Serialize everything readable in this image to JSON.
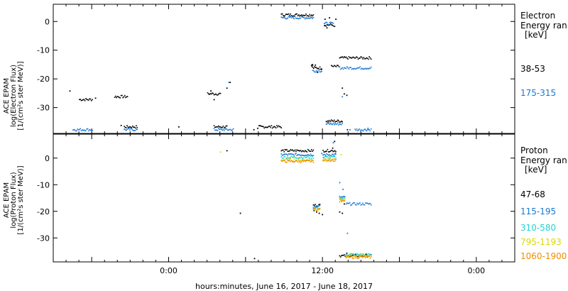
{
  "x_axis_label": "hours:minutes, June 16, 2017 - June 18, 2017",
  "chart_data": [
    {
      "type": "scatter",
      "panel": "electron",
      "ylabel": [
        "ACE EPAM",
        "log(Electron Flux)",
        "[1/(cm²s ster MeV)]"
      ],
      "legend_title": [
        "Electron",
        "Energy ran",
        "[keV]"
      ],
      "ylim": [
        -39,
        6
      ],
      "yticks": [
        0,
        -10,
        -20,
        -30
      ],
      "xticks": [
        "0:00",
        "12:00",
        "0:00"
      ],
      "grid": false,
      "series": [
        {
          "name": "38-53",
          "color": "#000000",
          "segments": [
            [
              -26,
              -24,
              -27.0
            ],
            [
              -20.5,
              -18.5,
              -26.0
            ],
            [
              -19,
              -17,
              -36.5
            ],
            [
              -6,
              -4,
              -25.0
            ],
            [
              -5,
              -3,
              -36.5
            ],
            [
              2,
              5.5,
              -36.5
            ],
            [
              5.5,
              10.5,
              2.5
            ],
            [
              10.2,
              10.4,
              -15.0
            ],
            [
              10.4,
              11.8,
              -16.0
            ],
            [
              12.2,
              13.6,
              -1.0
            ],
            [
              13.3,
              14.5,
              -15.5
            ],
            [
              14.6,
              19.5,
              -12.5
            ],
            [
              12.5,
              15.0,
              -34.5
            ]
          ],
          "points": [
            [
              -27.5,
              -24.0
            ],
            [
              -23.5,
              -26.5
            ],
            [
              -19.5,
              -36.0
            ],
            [
              -10.5,
              -36.5
            ],
            [
              -5.5,
              -24.0
            ],
            [
              -5.0,
              -27.0
            ],
            [
              -3.0,
              -23.0
            ],
            [
              -2.5,
              -21.0
            ],
            [
              1.2,
              -37.5
            ],
            [
              1.8,
              -37.0
            ],
            [
              10.8,
              -15.0
            ],
            [
              11.1,
              -17.5
            ],
            [
              11.7,
              -16.5
            ],
            [
              12.3,
              1.0
            ],
            [
              13.0,
              1.5
            ],
            [
              14.0,
              1.0
            ],
            [
              15.0,
              -23.0
            ],
            [
              15.3,
              -25.0
            ],
            [
              15.7,
              -25.5
            ],
            [
              15.8,
              -37.5
            ],
            [
              13.8,
              -1.5
            ],
            [
              12.6,
              -2.0
            ]
          ]
        },
        {
          "name": "175-315",
          "color": "#1a78d2",
          "segments": [
            [
              -27,
              -24,
              -37.5
            ],
            [
              -19,
              -17,
              -37.5
            ],
            [
              -5,
              -2,
              -37.5
            ],
            [
              5.5,
              10.5,
              1.5
            ],
            [
              10.4,
              11.8,
              -17.0
            ],
            [
              12.2,
              13.6,
              -0.5
            ],
            [
              14.6,
              19.5,
              -16.0
            ],
            [
              12.5,
              15.0,
              -35.5
            ],
            [
              17.0,
              19.5,
              -37.5
            ]
          ],
          "points": [
            [
              -2.7,
              -21.0
            ],
            [
              15.0,
              -26.0
            ],
            [
              16.2,
              -37.5
            ],
            [
              19.0,
              -37.0
            ]
          ]
        }
      ]
    },
    {
      "type": "scatter",
      "panel": "proton",
      "ylabel": [
        "ACE EPAM",
        "log(Proton Flux)",
        "[1/(cm²s ster MeV)]"
      ],
      "legend_title": [
        "Proton",
        "Energy ran",
        "[keV]"
      ],
      "ylim": [
        -39,
        9
      ],
      "yticks": [
        0,
        -10,
        -20,
        -30
      ],
      "xticks": [
        "0:00",
        "12:00",
        "0:00"
      ],
      "grid": false,
      "series": [
        {
          "name": "47-68",
          "color": "#000000",
          "segments": [
            [
              5.5,
              10.5,
              3.0
            ],
            [
              10.5,
              11.5,
              -17.5
            ],
            [
              12.0,
              14.0,
              3.0
            ],
            [
              14.6,
              19.5,
              -36.5
            ]
          ],
          "points": [
            [
              -3.0,
              3.0
            ],
            [
              -0.9,
              -20.5
            ],
            [
              1.3,
              -37.5
            ],
            [
              10.6,
              -19.5
            ],
            [
              11.0,
              -20.0
            ],
            [
              11.4,
              -20.5
            ],
            [
              11.9,
              -21.0
            ],
            [
              13.5,
              4.0
            ],
            [
              13.8,
              6.5
            ],
            [
              14.6,
              -20.0
            ],
            [
              15.0,
              -20.5
            ],
            [
              15.3,
              -17.0
            ],
            [
              15.7,
              -35.5
            ],
            [
              16.0,
              -36.5
            ]
          ]
        },
        {
          "name": "115-195",
          "color": "#1a78d2",
          "segments": [
            [
              5.5,
              10.5,
              1.5
            ],
            [
              10.5,
              11.5,
              -18.0
            ],
            [
              12.0,
              14.0,
              1.5
            ],
            [
              14.6,
              15.4,
              -14.5
            ],
            [
              15.6,
              19.5,
              -17.0
            ]
          ],
          "points": [
            [
              13.6,
              6.0
            ],
            [
              13.9,
              2.0
            ],
            [
              14.6,
              -9.0
            ],
            [
              15.1,
              -11.5
            ],
            [
              15.8,
              -28.0
            ],
            [
              11.8,
              2.0
            ]
          ]
        },
        {
          "name": "310-580",
          "color": "#22d0d0",
          "segments": [
            [
              5.5,
              10.5,
              0.5
            ],
            [
              10.5,
              11.5,
              -18.5
            ],
            [
              12.0,
              14.0,
              0.5
            ],
            [
              14.6,
              15.4,
              -15.0
            ],
            [
              15.6,
              19.5,
              -36.0
            ]
          ],
          "points": []
        },
        {
          "name": "795-1193",
          "color": "#d8d800",
          "segments": [
            [
              5.5,
              10.5,
              -0.5
            ],
            [
              10.5,
              11.5,
              -19.0
            ],
            [
              12.0,
              14.0,
              -0.5
            ],
            [
              14.6,
              15.4,
              -15.5
            ],
            [
              15.6,
              19.5,
              -36.5
            ]
          ],
          "points": [
            [
              -4.0,
              2.5
            ],
            [
              14.8,
              1.5
            ]
          ]
        },
        {
          "name": "1060-1900",
          "color": "#f08c00",
          "segments": [
            [
              5.5,
              10.5,
              -1.0
            ],
            [
              10.5,
              11.5,
              -19.0
            ],
            [
              12.0,
              14.0,
              -0.5
            ],
            [
              14.6,
              15.4,
              -16.0
            ],
            [
              15.6,
              19.5,
              -37.0
            ]
          ],
          "points": []
        }
      ]
    }
  ]
}
